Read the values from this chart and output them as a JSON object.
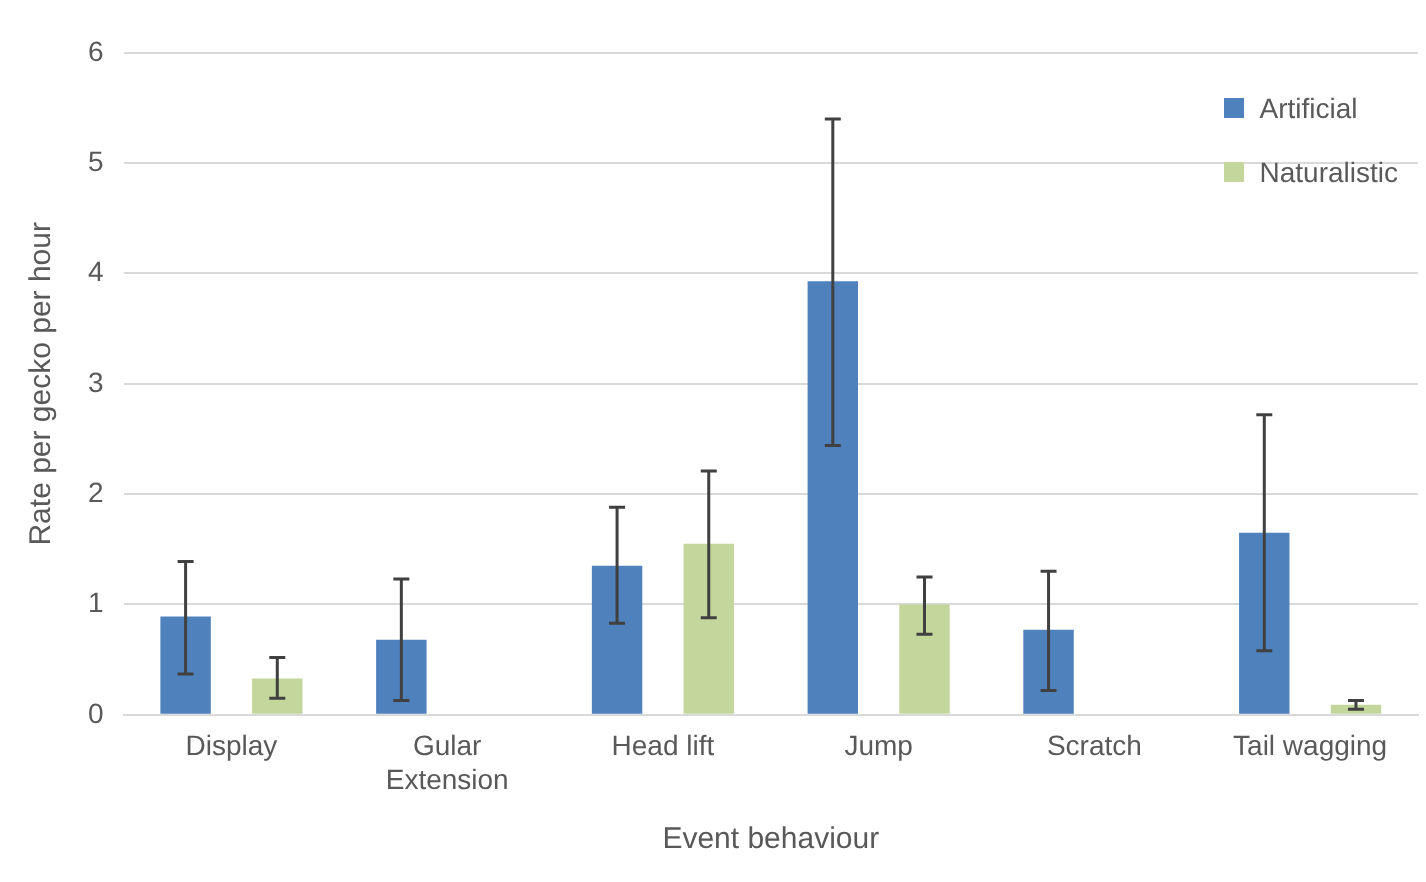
{
  "chart_data": {
    "type": "bar",
    "xlabel": "Event behaviour",
    "ylabel": "Rate per gecko per hour",
    "categories": [
      "Display",
      "Gular Extension",
      "Head lift",
      "Jump",
      "Scratch",
      "Tail wagging"
    ],
    "series": [
      {
        "name": "Artificial",
        "color": "#4f81bd",
        "values": [
          0.89,
          0.68,
          1.35,
          3.93,
          0.77,
          1.65
        ],
        "errors": [
          [
            0.37,
            1.39
          ],
          [
            0.13,
            1.23
          ],
          [
            0.83,
            1.88
          ],
          [
            2.44,
            5.4
          ],
          [
            0.22,
            1.3
          ],
          [
            0.58,
            2.72
          ]
        ]
      },
      {
        "name": "Naturalistic",
        "color": "#c3d69b",
        "values": [
          0.33,
          0,
          1.55,
          1.0,
          0,
          0.09
        ],
        "errors": [
          [
            0.15,
            0.52
          ],
          null,
          [
            0.88,
            2.21
          ],
          [
            0.73,
            1.25
          ],
          null,
          [
            0.05,
            0.13
          ]
        ]
      }
    ],
    "ylim": [
      0,
      6
    ],
    "yticks": [
      0,
      1,
      2,
      3,
      4,
      5,
      6
    ],
    "grid": "y",
    "legend": "top right"
  }
}
